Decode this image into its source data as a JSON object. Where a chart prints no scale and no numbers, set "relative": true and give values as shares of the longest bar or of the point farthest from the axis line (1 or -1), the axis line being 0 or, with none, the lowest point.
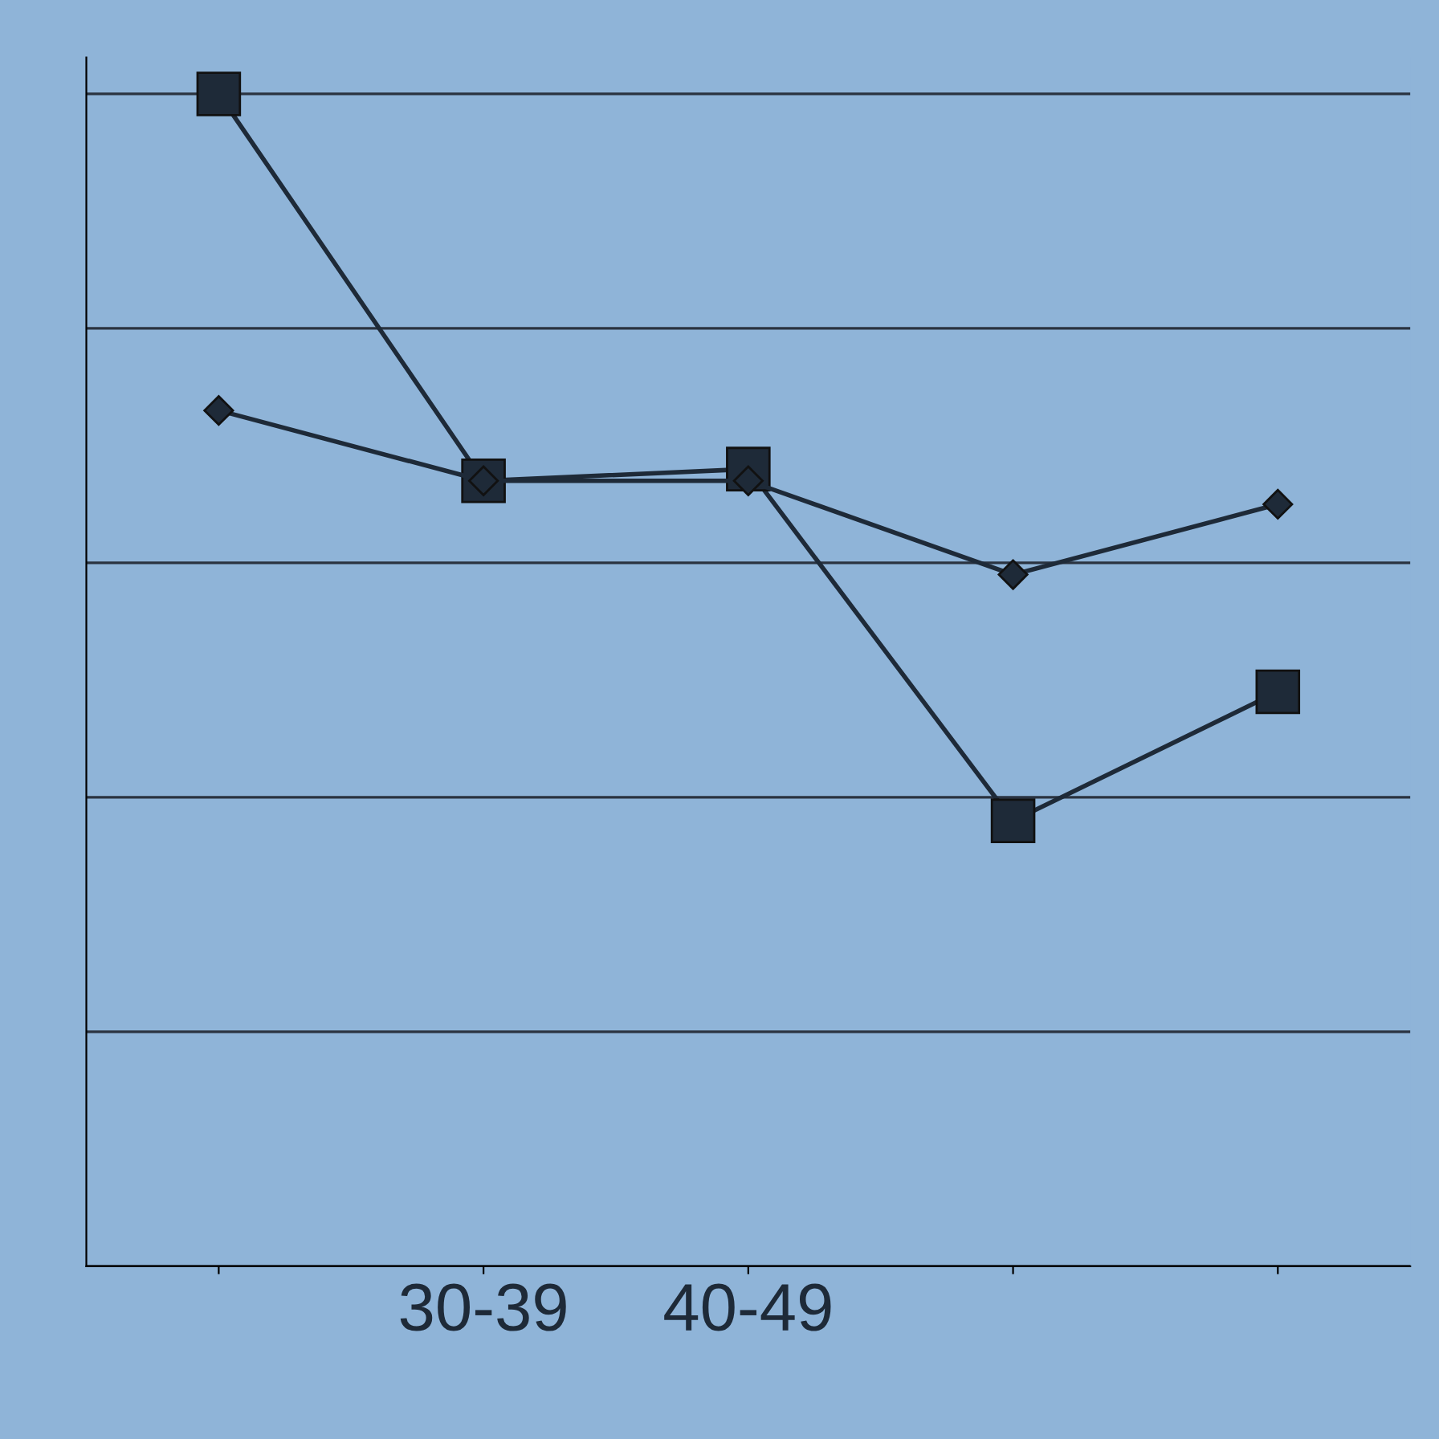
{
  "chart_data": {
    "type": "line",
    "relative": true,
    "categories": [
      null,
      "30-39",
      "40-49",
      null,
      null
    ],
    "series": [
      {
        "color": "#1e2a38",
        "marker": "square",
        "values": [
          1,
          0.67,
          0.68,
          0.38,
          0.49
        ]
      },
      {
        "color": "#1e2a38",
        "marker": "diamond",
        "values": [
          0.73,
          0.67,
          0.67,
          0.59,
          0.65
        ]
      }
    ],
    "grid": "y",
    "line_style": "solid",
    "legend": false
  }
}
